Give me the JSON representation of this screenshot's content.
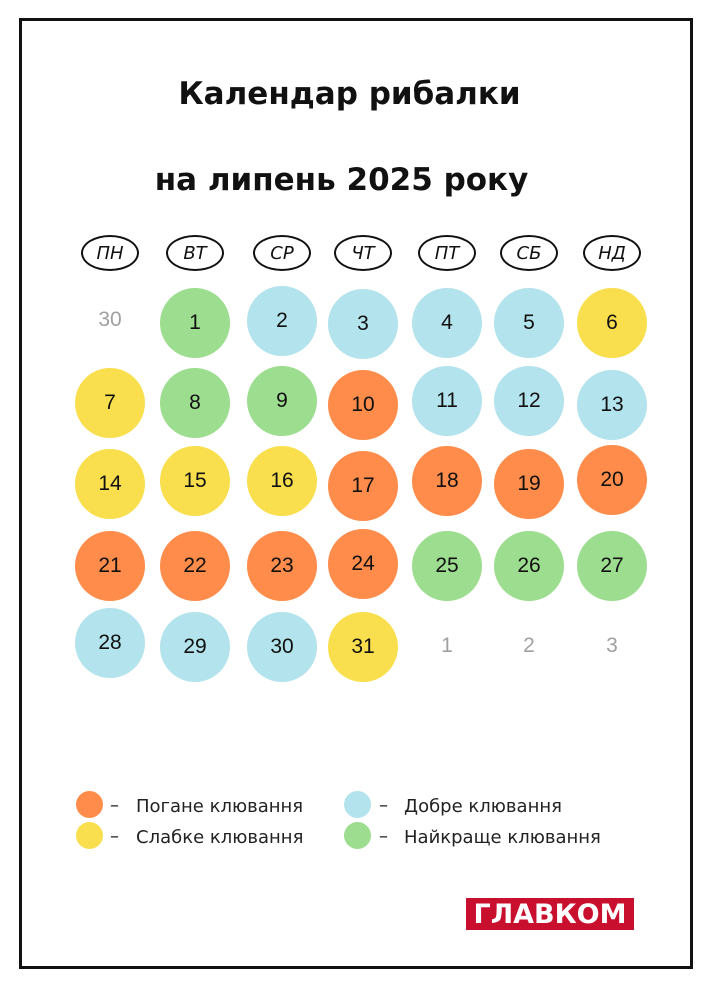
{
  "title": {
    "line1": "Календар рибалки",
    "line2": "на липень 2025 року"
  },
  "colors": {
    "bad": "#ff8c4a",
    "weak": "#f9df4e",
    "good": "#b3e3ec",
    "best": "#9ddd8f"
  },
  "weekdays": [
    "ПН",
    "ВТ",
    "СР",
    "ЧТ",
    "ПТ",
    "СБ",
    "НД"
  ],
  "calendar": {
    "weeks": [
      [
        {
          "day": "30",
          "bite": "none",
          "current_month": false
        },
        {
          "day": "1",
          "bite": "best",
          "current_month": true
        },
        {
          "day": "2",
          "bite": "good",
          "current_month": true
        },
        {
          "day": "3",
          "bite": "good",
          "current_month": true
        },
        {
          "day": "4",
          "bite": "good",
          "current_month": true
        },
        {
          "day": "5",
          "bite": "good",
          "current_month": true
        },
        {
          "day": "6",
          "bite": "weak",
          "current_month": true
        }
      ],
      [
        {
          "day": "7",
          "bite": "weak",
          "current_month": true
        },
        {
          "day": "8",
          "bite": "best",
          "current_month": true
        },
        {
          "day": "9",
          "bite": "best",
          "current_month": true
        },
        {
          "day": "10",
          "bite": "bad",
          "current_month": true
        },
        {
          "day": "11",
          "bite": "good",
          "current_month": true
        },
        {
          "day": "12",
          "bite": "good",
          "current_month": true
        },
        {
          "day": "13",
          "bite": "good",
          "current_month": true
        }
      ],
      [
        {
          "day": "14",
          "bite": "weak",
          "current_month": true
        },
        {
          "day": "15",
          "bite": "weak",
          "current_month": true
        },
        {
          "day": "16",
          "bite": "weak",
          "current_month": true
        },
        {
          "day": "17",
          "bite": "bad",
          "current_month": true
        },
        {
          "day": "18",
          "bite": "bad",
          "current_month": true
        },
        {
          "day": "19",
          "bite": "bad",
          "current_month": true
        },
        {
          "day": "20",
          "bite": "bad",
          "current_month": true
        }
      ],
      [
        {
          "day": "21",
          "bite": "bad",
          "current_month": true
        },
        {
          "day": "22",
          "bite": "bad",
          "current_month": true
        },
        {
          "day": "23",
          "bite": "bad",
          "current_month": true
        },
        {
          "day": "24",
          "bite": "bad",
          "current_month": true
        },
        {
          "day": "25",
          "bite": "best",
          "current_month": true
        },
        {
          "day": "26",
          "bite": "best",
          "current_month": true
        },
        {
          "day": "27",
          "bite": "best",
          "current_month": true
        }
      ],
      [
        {
          "day": "28",
          "bite": "good",
          "current_month": true
        },
        {
          "day": "29",
          "bite": "good",
          "current_month": true
        },
        {
          "day": "30",
          "bite": "good",
          "current_month": true
        },
        {
          "day": "31",
          "bite": "weak",
          "current_month": true
        },
        {
          "day": "1",
          "bite": "none",
          "current_month": false
        },
        {
          "day": "2",
          "bite": "none",
          "current_month": false
        },
        {
          "day": "3",
          "bite": "none",
          "current_month": false
        }
      ]
    ]
  },
  "legend": {
    "dash": "–",
    "bad": "Погане клювання",
    "good": "Добре клювання",
    "weak": "Слабке клювання",
    "best": "Найкраще клювання"
  },
  "logo": {
    "text": "ГЛАВКОМ"
  }
}
